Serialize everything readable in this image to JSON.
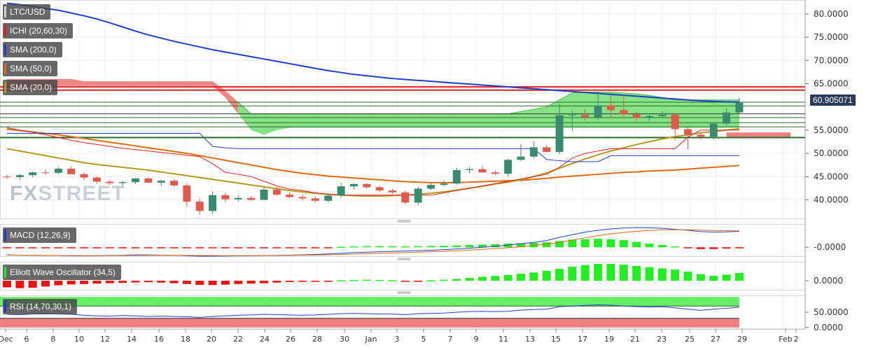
{
  "indicators": {
    "pair": "LTC/USD",
    "ichimoku": "ICHI (20,60,30)",
    "sma200": "SMA (200,0)",
    "sma50": "SMA (50,0)",
    "sma20": "SMA (20,0)",
    "macd": "MACD (12,26,9)",
    "ewo": "Elliott Wave Oscillator (34,5)",
    "rsi": "RSI (14,70,30,1)"
  },
  "watermark": {
    "part1": "FX",
    "part2": "STREET"
  },
  "last_price": "60.905071",
  "colors": {
    "up": "#3a8a72",
    "down": "#e0594a",
    "sma200": "#1e3fcc",
    "sma50": "#e06a10",
    "sma20": "#b39a1c",
    "cloud_bull": "#7ee27e",
    "cloud_bear": "#f08080",
    "ichi_tenkan": "#e02020",
    "ichi_kijun": "#2040d0",
    "hist_pos": "#22ee22",
    "hist_neg": "#ee1111",
    "rsi_over": "#66ee66",
    "rsi_under": "#f08080"
  },
  "axes": {
    "price_ticks": [
      "80.0000",
      "75.0000",
      "70.0000",
      "65.0000",
      "55.0000",
      "50.0000",
      "45.0000",
      "40.0000"
    ],
    "macd_tick": "-0.0000",
    "ewo_tick": "0.0000",
    "rsi_ticks": [
      "50.0000",
      "0.0000"
    ],
    "x_labels": [
      "Dec",
      "6",
      "8",
      "10",
      "12",
      "14",
      "16",
      "18",
      "20",
      "22",
      "24",
      "26",
      "28",
      "30",
      "Jan",
      "3",
      "5",
      "7",
      "9",
      "11",
      "13",
      "15",
      "17",
      "19",
      "21",
      "23",
      "25",
      "27",
      "29",
      "Feb",
      "2"
    ]
  },
  "chart_data": {
    "type": "candlestick",
    "x_labels": [
      "Dec",
      "6",
      "8",
      "10",
      "12",
      "14",
      "16",
      "18",
      "20",
      "22",
      "24",
      "26",
      "28",
      "30",
      "Jan",
      "3",
      "5",
      "7",
      "9",
      "11",
      "13",
      "15",
      "17",
      "19",
      "21",
      "23",
      "25",
      "27",
      "29",
      "Feb",
      "2"
    ],
    "ylim": [
      36,
      83
    ],
    "candles": [
      {
        "o": 45.0,
        "h": 45.4,
        "l": 44.5,
        "c": 44.9
      },
      {
        "o": 44.9,
        "h": 45.6,
        "l": 44.3,
        "c": 45.3
      },
      {
        "o": 45.3,
        "h": 46.1,
        "l": 44.9,
        "c": 45.9
      },
      {
        "o": 45.9,
        "h": 46.6,
        "l": 45.4,
        "c": 45.8
      },
      {
        "o": 45.8,
        "h": 47.0,
        "l": 45.5,
        "c": 46.7
      },
      {
        "o": 46.7,
        "h": 47.2,
        "l": 45.6,
        "c": 45.5
      },
      {
        "o": 45.5,
        "h": 45.9,
        "l": 44.2,
        "c": 44.8
      },
      {
        "o": 44.8,
        "h": 45.0,
        "l": 43.5,
        "c": 43.9
      },
      {
        "o": 43.9,
        "h": 44.2,
        "l": 43.2,
        "c": 43.6
      },
      {
        "o": 43.6,
        "h": 44.1,
        "l": 43.0,
        "c": 43.8
      },
      {
        "o": 43.8,
        "h": 44.7,
        "l": 43.4,
        "c": 44.6
      },
      {
        "o": 44.6,
        "h": 44.8,
        "l": 43.6,
        "c": 43.7
      },
      {
        "o": 43.7,
        "h": 44.3,
        "l": 43.0,
        "c": 44.1
      },
      {
        "o": 44.1,
        "h": 44.5,
        "l": 42.8,
        "c": 43.1
      },
      {
        "o": 43.1,
        "h": 43.6,
        "l": 38.5,
        "c": 39.6
      },
      {
        "o": 39.6,
        "h": 40.3,
        "l": 36.8,
        "c": 37.6
      },
      {
        "o": 37.6,
        "h": 41.8,
        "l": 37.0,
        "c": 41.0
      },
      {
        "o": 41.0,
        "h": 41.5,
        "l": 39.5,
        "c": 40.1
      },
      {
        "o": 40.1,
        "h": 40.9,
        "l": 39.6,
        "c": 40.4
      },
      {
        "o": 40.4,
        "h": 40.8,
        "l": 39.8,
        "c": 40.0
      },
      {
        "o": 40.0,
        "h": 42.6,
        "l": 39.9,
        "c": 42.2
      },
      {
        "o": 42.2,
        "h": 42.8,
        "l": 40.9,
        "c": 41.1
      },
      {
        "o": 41.1,
        "h": 41.6,
        "l": 40.3,
        "c": 40.6
      },
      {
        "o": 40.6,
        "h": 41.1,
        "l": 39.8,
        "c": 40.3
      },
      {
        "o": 40.3,
        "h": 40.7,
        "l": 39.5,
        "c": 39.8
      },
      {
        "o": 39.8,
        "h": 41.2,
        "l": 39.5,
        "c": 40.9
      },
      {
        "o": 40.9,
        "h": 43.7,
        "l": 40.4,
        "c": 42.9
      },
      {
        "o": 42.9,
        "h": 43.6,
        "l": 42.2,
        "c": 43.4
      },
      {
        "o": 43.4,
        "h": 43.7,
        "l": 42.4,
        "c": 42.7
      },
      {
        "o": 42.7,
        "h": 43.1,
        "l": 41.7,
        "c": 42.0
      },
      {
        "o": 42.0,
        "h": 42.3,
        "l": 41.3,
        "c": 41.6
      },
      {
        "o": 41.6,
        "h": 41.9,
        "l": 39.0,
        "c": 39.4
      },
      {
        "o": 39.4,
        "h": 42.8,
        "l": 38.9,
        "c": 42.4
      },
      {
        "o": 42.4,
        "h": 43.6,
        "l": 42.1,
        "c": 43.2
      },
      {
        "o": 43.2,
        "h": 44.2,
        "l": 42.9,
        "c": 43.5
      },
      {
        "o": 43.5,
        "h": 46.9,
        "l": 43.3,
        "c": 46.4
      },
      {
        "o": 46.4,
        "h": 47.0,
        "l": 45.7,
        "c": 46.6
      },
      {
        "o": 46.6,
        "h": 47.3,
        "l": 45.8,
        "c": 45.9
      },
      {
        "o": 45.9,
        "h": 46.3,
        "l": 45.3,
        "c": 45.6
      },
      {
        "o": 45.6,
        "h": 48.8,
        "l": 45.0,
        "c": 48.6
      },
      {
        "o": 48.6,
        "h": 52.0,
        "l": 48.4,
        "c": 49.3
      },
      {
        "o": 49.3,
        "h": 52.6,
        "l": 49.0,
        "c": 51.3
      },
      {
        "o": 51.3,
        "h": 51.8,
        "l": 50.2,
        "c": 50.3
      },
      {
        "o": 50.3,
        "h": 60.6,
        "l": 49.8,
        "c": 58.2
      },
      {
        "o": 58.2,
        "h": 59.2,
        "l": 54.8,
        "c": 58.3
      },
      {
        "o": 58.3,
        "h": 59.5,
        "l": 57.0,
        "c": 57.8
      },
      {
        "o": 57.8,
        "h": 63.2,
        "l": 57.0,
        "c": 60.3
      },
      {
        "o": 60.3,
        "h": 62.5,
        "l": 57.8,
        "c": 59.3
      },
      {
        "o": 59.3,
        "h": 62.6,
        "l": 57.5,
        "c": 58.4
      },
      {
        "o": 58.4,
        "h": 58.9,
        "l": 56.8,
        "c": 57.6
      },
      {
        "o": 57.6,
        "h": 58.3,
        "l": 56.9,
        "c": 58.0
      },
      {
        "o": 58.0,
        "h": 59.1,
        "l": 57.7,
        "c": 58.3
      },
      {
        "o": 58.3,
        "h": 58.7,
        "l": 52.8,
        "c": 55.2
      },
      {
        "o": 55.2,
        "h": 55.6,
        "l": 50.9,
        "c": 54.0
      },
      {
        "o": 54.0,
        "h": 54.6,
        "l": 53.0,
        "c": 53.6
      },
      {
        "o": 53.6,
        "h": 56.6,
        "l": 52.9,
        "c": 56.4
      },
      {
        "o": 56.4,
        "h": 59.7,
        "l": 56.0,
        "c": 58.8
      },
      {
        "o": 58.8,
        "h": 62.0,
        "l": 58.5,
        "c": 60.9
      }
    ],
    "sma200": [
      82.3,
      82.0,
      81.6,
      81.2,
      80.8,
      80.2,
      79.6,
      78.9,
      78.1,
      77.2,
      76.3,
      75.5,
      74.8,
      74.1,
      73.5,
      72.9,
      72.3,
      71.8,
      71.3,
      70.8,
      70.3,
      69.8,
      69.3,
      68.8,
      68.3,
      67.8,
      67.4,
      67.0,
      66.7,
      66.4,
      66.1,
      65.9,
      65.7,
      65.5,
      65.3,
      65.1,
      64.9,
      64.7,
      64.5,
      64.3,
      64.1,
      63.9,
      63.7,
      63.5,
      63.3,
      63.1,
      62.9,
      62.7,
      62.5,
      62.3,
      62.1,
      61.9,
      61.7,
      61.5,
      61.3,
      61.2,
      61.1,
      61.0
    ],
    "sma50": [
      55.2,
      54.9,
      54.6,
      54.3,
      54.0,
      53.6,
      53.2,
      52.8,
      52.4,
      52.0,
      51.6,
      51.2,
      50.8,
      50.4,
      50.0,
      49.5,
      49.0,
      48.5,
      48.0,
      47.5,
      47.0,
      46.5,
      46.1,
      45.7,
      45.4,
      45.1,
      44.9,
      44.7,
      44.5,
      44.3,
      44.1,
      43.9,
      43.8,
      43.7,
      43.7,
      43.7,
      43.8,
      43.9,
      44.0,
      44.1,
      44.2,
      44.4,
      44.6,
      44.9,
      45.1,
      45.3,
      45.5,
      45.7,
      45.9,
      46.0,
      46.2,
      46.3,
      46.4,
      46.6,
      46.8,
      47.0,
      47.2,
      47.4
    ],
    "sma20": [
      51.0,
      50.5,
      50.0,
      49.5,
      49.0,
      48.5,
      48.0,
      47.6,
      47.3,
      47.0,
      46.7,
      46.4,
      46.0,
      45.6,
      45.2,
      44.8,
      44.4,
      44.0,
      43.6,
      43.2,
      42.8,
      42.4,
      42.0,
      41.7,
      41.4,
      41.2,
      41.0,
      40.9,
      40.8,
      40.8,
      40.9,
      41.0,
      41.2,
      41.4,
      41.7,
      42.1,
      42.5,
      42.9,
      43.4,
      43.8,
      44.3,
      45.0,
      45.8,
      46.8,
      47.8,
      48.8,
      49.7,
      50.5,
      51.2,
      51.9,
      52.5,
      53.1,
      53.6,
      54.0,
      54.4,
      54.7,
      55.0,
      55.3
    ],
    "ichimoku_tenkan": [
      55.5,
      55.0,
      54.5,
      54.0,
      53.4,
      52.8,
      52.3,
      51.9,
      51.5,
      51.1,
      50.8,
      50.5,
      50.2,
      49.9,
      49.6,
      49.3,
      47.8,
      45.9,
      45.5,
      45.0,
      44.0,
      43.0,
      42.3,
      42.0,
      41.5,
      41.2,
      41.0,
      41.0,
      41.0,
      41.0,
      41.0,
      41.0,
      41.0,
      41.0,
      41.5,
      42.0,
      42.5,
      43.0,
      43.5,
      44.0,
      44.5,
      45.0,
      45.5,
      47.0,
      49.0,
      50.0,
      50.5,
      51.0,
      51.0,
      51.0,
      51.0,
      51.0,
      51.0,
      53.5,
      55.0,
      55.0,
      55.0,
      55.0
    ],
    "ichimoku_kijun": [
      54.3,
      54.3,
      54.3,
      54.3,
      54.3,
      54.3,
      54.3,
      54.3,
      54.3,
      54.3,
      54.3,
      54.3,
      54.3,
      54.3,
      54.3,
      54.3,
      51.5,
      51.2,
      51.0,
      51.0,
      51.0,
      51.0,
      51.0,
      51.0,
      51.0,
      51.0,
      51.0,
      51.0,
      51.0,
      51.0,
      51.0,
      51.0,
      51.0,
      51.0,
      51.0,
      51.0,
      51.0,
      51.0,
      51.0,
      51.0,
      51.0,
      51.0,
      48.7,
      48.4,
      48.2,
      48.2,
      48.2,
      49.5,
      49.5,
      49.5,
      49.5,
      49.5,
      49.5,
      49.5,
      49.5,
      49.5,
      49.5,
      49.5
    ],
    "cloud_upper": [
      66,
      66,
      66,
      66,
      66,
      66,
      65.5,
      65.5,
      65.5,
      65.5,
      65.5,
      65.5,
      65.5,
      65.5,
      65.5,
      65.5,
      65.5,
      63.5,
      61,
      58.5,
      58.5,
      58.5,
      58.5,
      58.5,
      58.5,
      58.5,
      58.5,
      58.5,
      58.5,
      58.5,
      58.5,
      58.5,
      58.5,
      58.5,
      58.5,
      58.5,
      58.5,
      58.5,
      58.5,
      58.5,
      59,
      59.5,
      60,
      61.5,
      63,
      63.2,
      63.2,
      63.2,
      63,
      62.8,
      62.5,
      62,
      61.5,
      61.5,
      61.5,
      61.5,
      61.5,
      61.5
    ],
    "cloud_lower": [
      64.5,
      64.5,
      64.5,
      64.5,
      64.5,
      64.5,
      64.5,
      64.5,
      64.5,
      64.5,
      64.5,
      64.5,
      64.5,
      64.5,
      64.5,
      64.5,
      64.5,
      62,
      58.5,
      55,
      54,
      55,
      55.5,
      55.5,
      55.5,
      55.5,
      55.5,
      55.5,
      55.5,
      55.5,
      55.5,
      55.5,
      55.5,
      55.5,
      55.5,
      55.5,
      55.5,
      55.5,
      55.5,
      55.5,
      55.5,
      55.5,
      55.5,
      55.5,
      55.5,
      55.5,
      55.5,
      55.5,
      55.5,
      55.5,
      55.5,
      55.5,
      55.5,
      55.5,
      55.5,
      55.5,
      55.5,
      55.5
    ],
    "cloud_future": {
      "upper": 54.5,
      "lower": 53.5
    },
    "horizontal_levels": [
      {
        "value": 64.3,
        "color": "#e02020",
        "width": 2
      },
      {
        "value": 63.6,
        "color": "#e02020",
        "width": 2
      },
      {
        "value": 61.0,
        "color": "#2a6a2a",
        "width": 1
      },
      {
        "value": 60.2,
        "color": "#2a6a2a",
        "width": 1
      },
      {
        "value": 58.5,
        "color": "#333333",
        "width": 1
      },
      {
        "value": 57.7,
        "color": "#2a6a2a",
        "width": 1
      },
      {
        "value": 56.6,
        "color": "#2a6a2a",
        "width": 1
      },
      {
        "value": 55.7,
        "color": "#2a6a2a",
        "width": 1
      },
      {
        "value": 53.4,
        "color": "#2a6a2a",
        "width": 2
      }
    ],
    "macd": {
      "ylim": [
        -1,
        2.6
      ],
      "hist": [
        -0.05,
        -0.05,
        -0.05,
        -0.05,
        -0.05,
        -0.05,
        -0.05,
        -0.05,
        -0.05,
        -0.05,
        -0.05,
        -0.06,
        -0.06,
        -0.06,
        -0.06,
        -0.08,
        -0.1,
        -0.1,
        -0.1,
        -0.1,
        -0.08,
        -0.06,
        -0.05,
        -0.04,
        -0.03,
        -0.02,
        0.05,
        0.1,
        0.12,
        0.12,
        0.12,
        0.1,
        0.12,
        0.14,
        0.16,
        0.2,
        0.25,
        0.3,
        0.35,
        0.4,
        0.45,
        0.5,
        0.55,
        0.7,
        0.85,
        0.9,
        0.95,
        0.9,
        0.8,
        0.6,
        0.4,
        0.25,
        0.1,
        -0.1,
        -0.2,
        -0.2,
        -0.15,
        -0.1
      ],
      "macd": [
        -0.85,
        -0.88,
        -0.9,
        -0.92,
        -0.93,
        -0.95,
        -0.97,
        -0.95,
        -0.92,
        -0.9,
        -0.85,
        -0.86,
        -0.88,
        -0.9,
        -0.95,
        -1.0,
        -1.0,
        -0.98,
        -0.96,
        -0.95,
        -0.93,
        -0.9,
        -0.88,
        -0.85,
        -0.8,
        -0.75,
        -0.68,
        -0.6,
        -0.55,
        -0.5,
        -0.46,
        -0.42,
        -0.38,
        -0.33,
        -0.27,
        -0.2,
        -0.1,
        0.0,
        0.1,
        0.25,
        0.4,
        0.55,
        0.75,
        1.1,
        1.4,
        1.7,
        1.9,
        2.05,
        2.15,
        2.2,
        2.18,
        2.12,
        2.0,
        1.9,
        1.75,
        1.7,
        1.72,
        1.78
      ],
      "signal": [
        -0.88,
        -0.89,
        -0.9,
        -0.91,
        -0.92,
        -0.93,
        -0.94,
        -0.94,
        -0.94,
        -0.93,
        -0.92,
        -0.91,
        -0.9,
        -0.9,
        -0.91,
        -0.92,
        -0.93,
        -0.94,
        -0.94,
        -0.94,
        -0.93,
        -0.92,
        -0.91,
        -0.89,
        -0.87,
        -0.84,
        -0.8,
        -0.76,
        -0.72,
        -0.68,
        -0.64,
        -0.6,
        -0.55,
        -0.5,
        -0.45,
        -0.39,
        -0.32,
        -0.24,
        -0.15,
        -0.05,
        0.07,
        0.2,
        0.35,
        0.55,
        0.8,
        1.05,
        1.3,
        1.5,
        1.65,
        1.78,
        1.88,
        1.93,
        1.95,
        1.95,
        1.92,
        1.88,
        1.85,
        1.83
      ]
    },
    "ewo": {
      "ylim": [
        -2.2,
        4.6
      ],
      "values": [
        -1.6,
        -1.8,
        -1.7,
        -1.4,
        -1.1,
        -0.9,
        -0.8,
        -0.7,
        -0.6,
        -0.5,
        -0.4,
        -0.35,
        -0.45,
        -0.6,
        -0.8,
        -1.0,
        -1.05,
        -0.95,
        -0.8,
        -0.7,
        -0.6,
        -0.45,
        -0.3,
        -0.2,
        -0.12,
        -0.08,
        0.1,
        0.2,
        0.25,
        0.2,
        0.12,
        -0.08,
        -0.1,
        0.1,
        0.25,
        0.45,
        0.7,
        0.95,
        1.15,
        1.4,
        1.7,
        2.0,
        2.4,
        2.9,
        3.4,
        3.8,
        4.1,
        4.1,
        3.9,
        3.6,
        3.3,
        3.0,
        2.7,
        2.2,
        1.6,
        1.2,
        1.5,
        1.9
      ]
    },
    "rsi": {
      "ylim": [
        -5,
        105
      ],
      "overbought": 70,
      "oversold": 30,
      "values": [
        43,
        42,
        44,
        45,
        44,
        43,
        40,
        38,
        37,
        39,
        38,
        36,
        37,
        36,
        35,
        33,
        36,
        38,
        40,
        41,
        43,
        42,
        41,
        40,
        41,
        43,
        45,
        46,
        45,
        44,
        44,
        42,
        45,
        46,
        47,
        50,
        52,
        53,
        52,
        53,
        57,
        59,
        60,
        68,
        70,
        72,
        74,
        73,
        70,
        68,
        67,
        68,
        64,
        60,
        56,
        60,
        63,
        66
      ]
    }
  }
}
